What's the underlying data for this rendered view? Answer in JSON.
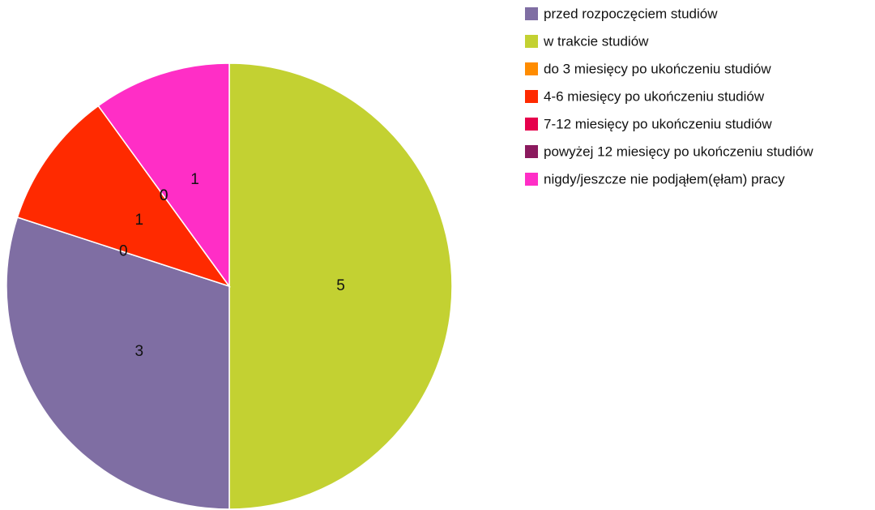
{
  "chart_data": {
    "type": "pie",
    "categories": [
      "przed rozpoczęciem studiów",
      "w trakcie studiów",
      "do 3 miesięcy po ukończeniu studiów",
      "4-6 miesięcy po ukończeniu studiów",
      "7-12 miesięcy po ukończeniu studiów",
      "powyżej 12 miesięcy po ukończeniu studiów",
      "nigdy/jeszcze nie podjąłem(ęłam) pracy"
    ],
    "values": [
      3,
      5,
      0,
      1,
      0,
      0,
      1
    ],
    "colors": [
      "#7f6ea3",
      "#c3d132",
      "#ff8c00",
      "#ff2a00",
      "#e6004c",
      "#8b1a5e",
      "#ff2ec6"
    ],
    "legend": "right"
  }
}
